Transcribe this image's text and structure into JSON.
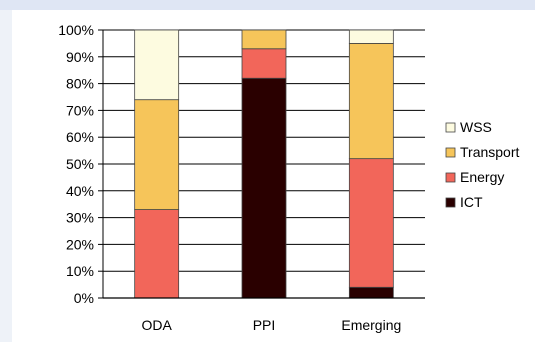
{
  "chart_data": {
    "type": "bar",
    "stacked": true,
    "percent_axis": true,
    "categories": [
      "ODA",
      "PPI",
      "Emerging"
    ],
    "series": [
      {
        "name": "ICT",
        "color": "#2a0000",
        "values": [
          0,
          82,
          4
        ]
      },
      {
        "name": "Energy",
        "color": "#f2665a",
        "values": [
          33,
          11,
          48
        ]
      },
      {
        "name": "Transport",
        "color": "#f6c55a",
        "values": [
          41,
          7,
          43
        ]
      },
      {
        "name": "WSS",
        "color": "#fdfbe0",
        "values": [
          26,
          0,
          5
        ]
      }
    ],
    "legend_order": [
      "WSS",
      "Transport",
      "Energy",
      "ICT"
    ],
    "y_ticks": [
      "0%",
      "10%",
      "20%",
      "30%",
      "40%",
      "50%",
      "60%",
      "70%",
      "80%",
      "90%",
      "100%"
    ],
    "ylim": [
      0,
      100
    ],
    "grid": true,
    "legend_position": "right",
    "title": "",
    "xlabel": "",
    "ylabel": ""
  }
}
